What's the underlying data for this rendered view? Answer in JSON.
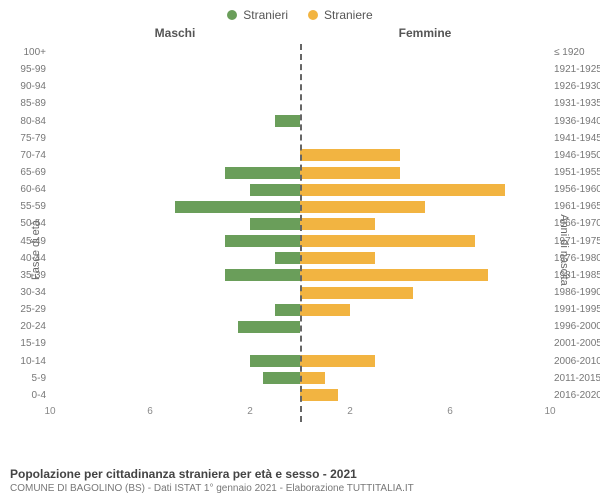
{
  "legend": {
    "male": {
      "label": "Stranieri",
      "color": "#6a9e5a"
    },
    "female": {
      "label": "Straniere",
      "color": "#f2b441"
    }
  },
  "headers": {
    "left": "Maschi",
    "right": "Femmine"
  },
  "axis": {
    "left_label": "Fasce di età",
    "right_label": "Anni di nascita",
    "max": 10,
    "ticks_left": [
      10,
      6,
      2
    ],
    "ticks_right": [
      2,
      6,
      10
    ]
  },
  "chart": {
    "type": "population-pyramid",
    "bar_height_ratio": 0.7,
    "background": "#ffffff",
    "center_line_color": "#666666"
  },
  "rows": [
    {
      "age": "100+",
      "birth": "≤ 1920",
      "m": 0,
      "f": 0
    },
    {
      "age": "95-99",
      "birth": "1921-1925",
      "m": 0,
      "f": 0
    },
    {
      "age": "90-94",
      "birth": "1926-1930",
      "m": 0,
      "f": 0
    },
    {
      "age": "85-89",
      "birth": "1931-1935",
      "m": 0,
      "f": 0
    },
    {
      "age": "80-84",
      "birth": "1936-1940",
      "m": 1,
      "f": 0
    },
    {
      "age": "75-79",
      "birth": "1941-1945",
      "m": 0,
      "f": 0
    },
    {
      "age": "70-74",
      "birth": "1946-1950",
      "m": 0,
      "f": 4
    },
    {
      "age": "65-69",
      "birth": "1951-1955",
      "m": 3,
      "f": 4
    },
    {
      "age": "60-64",
      "birth": "1956-1960",
      "m": 2,
      "f": 8.2
    },
    {
      "age": "55-59",
      "birth": "1961-1965",
      "m": 5,
      "f": 5
    },
    {
      "age": "50-54",
      "birth": "1966-1970",
      "m": 2,
      "f": 3
    },
    {
      "age": "45-49",
      "birth": "1971-1975",
      "m": 3,
      "f": 7
    },
    {
      "age": "40-44",
      "birth": "1976-1980",
      "m": 1,
      "f": 3
    },
    {
      "age": "35-39",
      "birth": "1981-1985",
      "m": 3,
      "f": 7.5
    },
    {
      "age": "30-34",
      "birth": "1986-1990",
      "m": 0,
      "f": 4.5
    },
    {
      "age": "25-29",
      "birth": "1991-1995",
      "m": 1,
      "f": 2
    },
    {
      "age": "20-24",
      "birth": "1996-2000",
      "m": 2.5,
      "f": 0
    },
    {
      "age": "15-19",
      "birth": "2001-2005",
      "m": 0,
      "f": 0
    },
    {
      "age": "10-14",
      "birth": "2006-2010",
      "m": 2,
      "f": 3
    },
    {
      "age": "5-9",
      "birth": "2011-2015",
      "m": 1.5,
      "f": 1
    },
    {
      "age": "0-4",
      "birth": "2016-2020",
      "m": 0,
      "f": 1.5
    }
  ],
  "footer": {
    "title": "Popolazione per cittadinanza straniera per età e sesso - 2021",
    "subtitle": "COMUNE DI BAGOLINO (BS) - Dati ISTAT 1° gennaio 2021 - Elaborazione TUTTITALIA.IT"
  }
}
